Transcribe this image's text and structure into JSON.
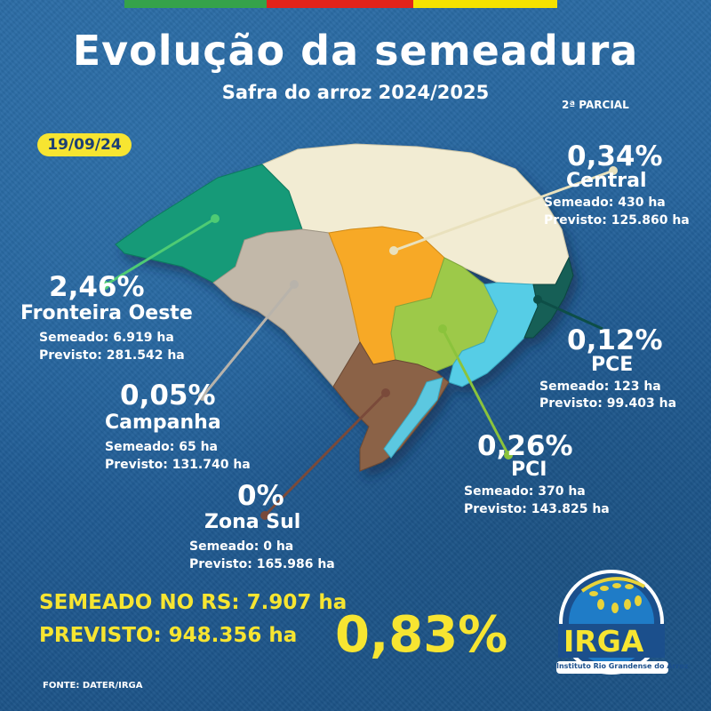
{
  "header": {
    "title": "Evolução da semeadura",
    "subtitle": "Safra do arroz 2024/2025",
    "parcial": "2ª PARCIAL",
    "date": "19/09/24"
  },
  "regions": {
    "central": {
      "name": "Central",
      "percent": "0,34%",
      "semeado": "Semeado: 430 ha",
      "previsto": "Previsto: 125.860 ha",
      "color": "#f2ecd3"
    },
    "fronteira_oeste": {
      "name": "Fronteira Oeste",
      "percent": "2,46%",
      "semeado": "Semeado: 6.919 ha",
      "previsto": "Previsto: 281.542 ha",
      "color": "#139a78"
    },
    "campanha": {
      "name": "Campanha",
      "percent": "0,05%",
      "semeado": "Semeado: 65 ha",
      "previsto": "Previsto: 131.740 ha",
      "color": "#c2b8a9"
    },
    "pce": {
      "name": "PCE",
      "percent": "0,12%",
      "semeado": "Semeado: 123 ha",
      "previsto": "Previsto: 99.403 ha",
      "color": "#125e57"
    },
    "pci": {
      "name": "PCI",
      "percent": "0,26%",
      "semeado": "Semeado: 370 ha",
      "previsto": "Previsto: 143.825 ha",
      "color": "#9dc94a"
    },
    "zona_sul": {
      "name": "Zona Sul",
      "percent": "0%",
      "semeado": "Semeado: 0 ha",
      "previsto": "Previsto: 165.986 ha",
      "color": "#8b6246"
    }
  },
  "totals": {
    "semeado": "SEMEADO NO RS: 7.907 ha",
    "previsto": "PREVISTO: 948.356 ha",
    "percent": "0,83%"
  },
  "footer": {
    "source": "FONTE: DATER/IRGA"
  },
  "logo": {
    "name": "IRGA",
    "full_name": "Instituto Rio Grandense do Arroz"
  },
  "colors": {
    "background": "#23609a",
    "accent_yellow": "#f7e531",
    "flag_green": "#35a24a",
    "flag_red": "#e2231a",
    "flag_yellow": "#f5e200"
  }
}
